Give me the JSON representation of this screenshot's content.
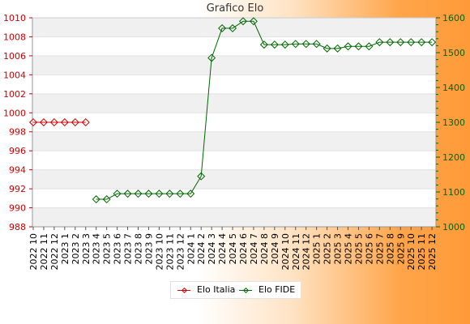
{
  "chart_data": {
    "type": "line",
    "title": "Grafico Elo",
    "categories": [
      "2022 10",
      "2022 11",
      "2022 12",
      "2023 1",
      "2023 2",
      "2023 3",
      "2023 4",
      "2023 5",
      "2023 6",
      "2023 7",
      "2023 8",
      "2023 9",
      "2023 10",
      "2023 11",
      "2023 12",
      "2024 1",
      "2024 2",
      "2024 3",
      "2024 4",
      "2024 5",
      "2024 6",
      "2024 7",
      "2024 8",
      "2024 9",
      "2024 10",
      "2024 11",
      "2024 12",
      "2025 1",
      "2025 2",
      "2025 3",
      "2025 4",
      "2025 5",
      "2025 6",
      "2025 7",
      "2025 8",
      "2025 9",
      "2025 10",
      "2025 11",
      "2025 12"
    ],
    "y_left": {
      "range": [
        988,
        1010
      ],
      "ticks": [
        "988",
        "990",
        "992",
        "994",
        "996",
        "998",
        "1000",
        "1002",
        "1004",
        "1006",
        "1008",
        "1010"
      ]
    },
    "y_right": {
      "range": [
        1000,
        1600
      ],
      "ticks": [
        "1000",
        "1100",
        "1200",
        "1300",
        "1400",
        "1500",
        "1600"
      ]
    },
    "series": [
      {
        "name": "Elo Italia",
        "axis": "left",
        "color": "#cc0000",
        "values": [
          999,
          999,
          999,
          999,
          999,
          999,
          null,
          null,
          null,
          null,
          null,
          null,
          null,
          null,
          null,
          null,
          null,
          null,
          null,
          null,
          null,
          null,
          null,
          null,
          null,
          null,
          null,
          null,
          null,
          null,
          null,
          null,
          null,
          null,
          null,
          null,
          null,
          null,
          null
        ]
      },
      {
        "name": "Elo FIDE",
        "axis": "right",
        "color": "#006600",
        "values": [
          null,
          null,
          null,
          null,
          null,
          null,
          1079,
          1079,
          1095,
          1095,
          1095,
          1095,
          1095,
          1095,
          1095,
          1095,
          1145,
          1485,
          1570,
          1570,
          1590,
          1590,
          1523,
          1523,
          1523,
          1525,
          1525,
          1525,
          1512,
          1512,
          1518,
          1518,
          1518,
          1530,
          1530,
          1530,
          1530,
          1530,
          1530
        ]
      }
    ],
    "grid": true,
    "grid_style": "alternating horizontal bands",
    "legend_position": "bottom-center"
  }
}
